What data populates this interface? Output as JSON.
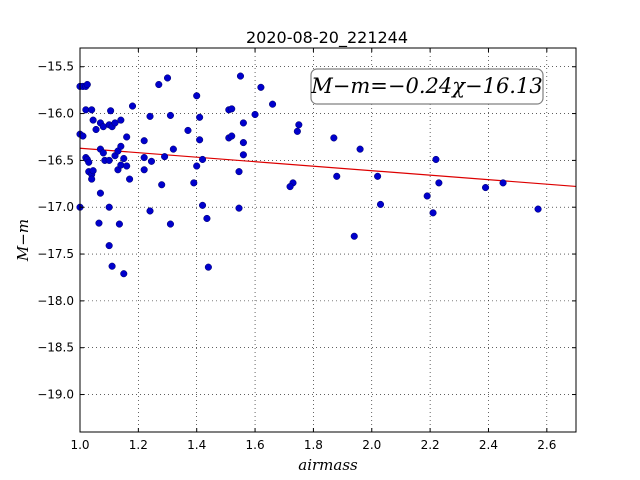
{
  "chart_data": {
    "type": "scatter",
    "title": "2020-08-20_221244",
    "xlabel": "airmass",
    "ylabel": "M−m",
    "xlim": [
      1.0,
      2.7
    ],
    "ylim": [
      -15.3,
      -19.4
    ],
    "x_ticks": [
      "1.0",
      "1.2",
      "1.4",
      "1.6",
      "1.8",
      "2.0",
      "2.2",
      "2.4",
      "2.6"
    ],
    "y_ticks": [
      "−15.5",
      "−16.0",
      "−16.5",
      "−17.0",
      "−17.5",
      "−18.0",
      "−18.5",
      "−19.0"
    ],
    "grid": true,
    "annotation": "M−m=−0.24χ−16.13",
    "fit": {
      "slope": -0.24,
      "intercept": -16.13
    },
    "marker_color": "#0000cc",
    "fit_color": "#dd0000",
    "points": [
      [
        1.0,
        -15.71
      ],
      [
        1.01,
        -15.71
      ],
      [
        1.02,
        -15.71
      ],
      [
        1.025,
        -15.69
      ],
      [
        1.0,
        -16.22
      ],
      [
        1.01,
        -16.24
      ],
      [
        1.02,
        -15.96
      ],
      [
        1.04,
        -15.96
      ],
      [
        1.02,
        -16.47
      ],
      [
        1.025,
        -16.49
      ],
      [
        1.03,
        -16.52
      ],
      [
        1.03,
        -16.62
      ],
      [
        1.04,
        -16.65
      ],
      [
        1.045,
        -16.61
      ],
      [
        1.04,
        -16.7
      ],
      [
        1.045,
        -16.07
      ],
      [
        1.055,
        -16.17
      ],
      [
        1.07,
        -16.1
      ],
      [
        1.08,
        -16.14
      ],
      [
        1.07,
        -16.38
      ],
      [
        1.08,
        -16.42
      ],
      [
        1.085,
        -16.5
      ],
      [
        1.1,
        -16.5
      ],
      [
        1.1,
        -16.12
      ],
      [
        1.11,
        -16.14
      ],
      [
        1.105,
        -15.97
      ],
      [
        1.12,
        -16.1
      ],
      [
        1.14,
        -16.07
      ],
      [
        1.12,
        -16.45
      ],
      [
        1.13,
        -16.4
      ],
      [
        1.14,
        -16.35
      ],
      [
        1.15,
        -16.48
      ],
      [
        1.13,
        -16.6
      ],
      [
        1.14,
        -16.55
      ],
      [
        1.16,
        -16.56
      ],
      [
        1.16,
        -16.25
      ],
      [
        1.17,
        -16.7
      ],
      [
        1.18,
        -15.92
      ],
      [
        1.0,
        -17.0
      ],
      [
        1.07,
        -16.85
      ],
      [
        1.1,
        -17.0
      ],
      [
        1.065,
        -17.17
      ],
      [
        1.135,
        -17.18
      ],
      [
        1.1,
        -17.41
      ],
      [
        1.11,
        -17.63
      ],
      [
        1.15,
        -17.71
      ],
      [
        1.22,
        -16.29
      ],
      [
        1.24,
        -16.03
      ],
      [
        1.22,
        -16.47
      ],
      [
        1.245,
        -16.51
      ],
      [
        1.22,
        -16.6
      ],
      [
        1.28,
        -16.76
      ],
      [
        1.24,
        -17.04
      ],
      [
        1.27,
        -15.69
      ],
      [
        1.3,
        -15.62
      ],
      [
        1.31,
        -16.02
      ],
      [
        1.32,
        -16.38
      ],
      [
        1.29,
        -16.46
      ],
      [
        1.31,
        -17.18
      ],
      [
        1.4,
        -15.81
      ],
      [
        1.41,
        -16.04
      ],
      [
        1.41,
        -16.28
      ],
      [
        1.37,
        -16.18
      ],
      [
        1.42,
        -16.49
      ],
      [
        1.4,
        -16.56
      ],
      [
        1.39,
        -16.74
      ],
      [
        1.42,
        -16.98
      ],
      [
        1.435,
        -17.12
      ],
      [
        1.44,
        -17.64
      ],
      [
        1.51,
        -15.96
      ],
      [
        1.52,
        -15.95
      ],
      [
        1.51,
        -16.26
      ],
      [
        1.52,
        -16.24
      ],
      [
        1.55,
        -15.6
      ],
      [
        1.56,
        -16.1
      ],
      [
        1.56,
        -16.31
      ],
      [
        1.56,
        -16.44
      ],
      [
        1.545,
        -16.62
      ],
      [
        1.545,
        -17.01
      ],
      [
        1.6,
        -16.01
      ],
      [
        1.62,
        -15.72
      ],
      [
        1.66,
        -15.9
      ],
      [
        1.73,
        -16.74
      ],
      [
        1.72,
        -16.78
      ],
      [
        1.75,
        -16.12
      ],
      [
        1.745,
        -16.19
      ],
      [
        1.87,
        -16.26
      ],
      [
        1.88,
        -16.67
      ],
      [
        1.94,
        -17.31
      ],
      [
        1.96,
        -16.38
      ],
      [
        2.02,
        -16.67
      ],
      [
        2.03,
        -16.97
      ],
      [
        2.19,
        -16.88
      ],
      [
        2.21,
        -17.06
      ],
      [
        2.22,
        -16.49
      ],
      [
        2.23,
        -16.74
      ],
      [
        2.39,
        -16.79
      ],
      [
        2.45,
        -16.74
      ],
      [
        2.57,
        -17.02
      ]
    ]
  }
}
